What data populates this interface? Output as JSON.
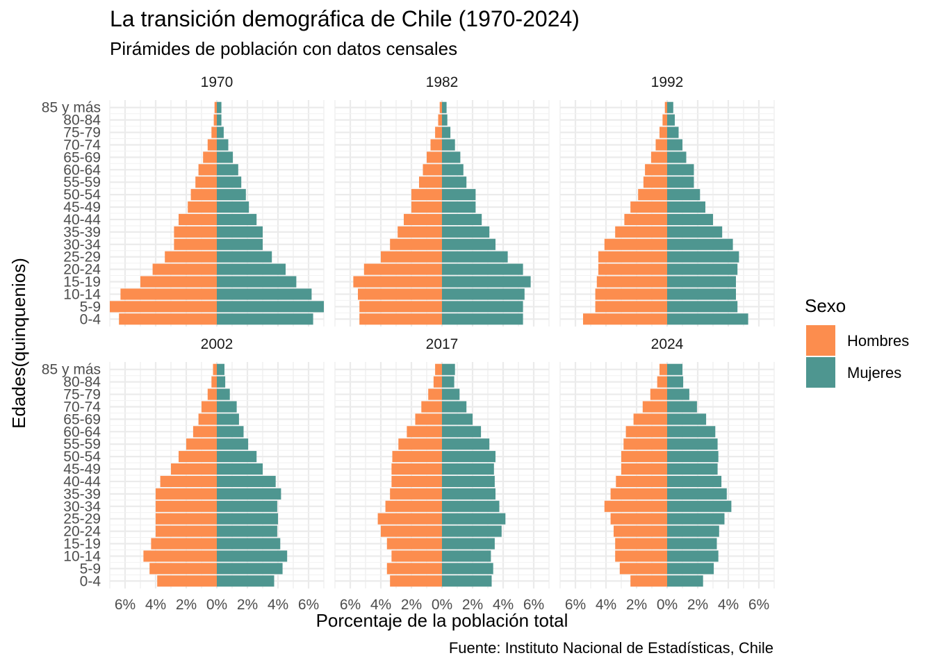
{
  "chart_data": {
    "type": "bar",
    "orientation": "horizontal",
    "layout": "faceted population pyramids",
    "title": "La transición demográfica de Chile (1970-2024)",
    "subtitle": "Pirámides de población con datos censales",
    "xlabel": "Porcentaje de la población total",
    "ylabel": "Edades(quinquenios)",
    "caption": "Fuente: Instituto Nacional de Estadísticas, Chile",
    "xlim": [
      -7,
      7
    ],
    "x_ticks": [
      -6,
      -4,
      -2,
      0,
      2,
      4,
      6
    ],
    "x_tick_labels": [
      "6%",
      "4%",
      "2%",
      "0%",
      "2%",
      "4%",
      "6%"
    ],
    "categories": [
      "0-4",
      "5-9",
      "10-14",
      "15-19",
      "20-24",
      "25-29",
      "30-34",
      "35-39",
      "40-44",
      "45-49",
      "50-54",
      "55-59",
      "60-64",
      "65-69",
      "70-74",
      "75-79",
      "80-84",
      "85 y más"
    ],
    "grid": true,
    "legend": {
      "title": "Sexo",
      "position": "right",
      "entries": [
        {
          "name": "Hombres",
          "color": "#fc8d4e"
        },
        {
          "name": "Mujeres",
          "color": "#4e9690"
        }
      ]
    },
    "colors": {
      "Hombres": "#fc8d4e",
      "Mujeres": "#4e9690"
    },
    "panels": [
      {
        "year": "1970",
        "Hombres": [
          6.4,
          7.0,
          6.3,
          5.0,
          4.2,
          3.4,
          2.8,
          2.8,
          2.5,
          1.9,
          1.7,
          1.4,
          1.2,
          0.9,
          0.6,
          0.35,
          0.2,
          0.15
        ],
        "Mujeres": [
          6.3,
          7.0,
          6.2,
          5.2,
          4.5,
          3.6,
          3.0,
          3.0,
          2.6,
          2.1,
          1.9,
          1.6,
          1.4,
          1.05,
          0.75,
          0.45,
          0.3,
          0.3
        ]
      },
      {
        "year": "1982",
        "Hombres": [
          5.4,
          5.4,
          5.5,
          5.8,
          5.1,
          4.0,
          3.4,
          2.9,
          2.5,
          2.0,
          2.0,
          1.5,
          1.25,
          1.0,
          0.75,
          0.45,
          0.25,
          0.15
        ],
        "Mujeres": [
          5.3,
          5.3,
          5.4,
          5.8,
          5.3,
          4.3,
          3.5,
          3.1,
          2.6,
          2.2,
          2.2,
          1.6,
          1.4,
          1.2,
          0.85,
          0.55,
          0.35,
          0.3
        ]
      },
      {
        "year": "1992",
        "Hombres": [
          5.5,
          4.7,
          4.7,
          4.6,
          4.5,
          4.5,
          4.1,
          3.4,
          2.8,
          2.4,
          1.9,
          1.55,
          1.45,
          1.05,
          0.75,
          0.5,
          0.3,
          0.15
        ],
        "Mujeres": [
          5.3,
          4.6,
          4.5,
          4.5,
          4.6,
          4.7,
          4.3,
          3.6,
          3.0,
          2.5,
          2.15,
          1.75,
          1.75,
          1.25,
          1.0,
          0.75,
          0.5,
          0.4
        ]
      },
      {
        "year": "2002",
        "Hombres": [
          3.9,
          4.4,
          4.8,
          4.3,
          4.0,
          4.0,
          4.0,
          4.0,
          3.7,
          3.0,
          2.5,
          2.0,
          1.55,
          1.2,
          1.0,
          0.6,
          0.35,
          0.25
        ],
        "Mujeres": [
          3.75,
          4.3,
          4.6,
          4.15,
          3.95,
          4.0,
          3.95,
          4.2,
          3.85,
          3.0,
          2.6,
          2.05,
          1.75,
          1.45,
          1.3,
          0.85,
          0.55,
          0.5
        ]
      },
      {
        "year": "2017",
        "Hombres": [
          3.4,
          3.6,
          3.3,
          3.6,
          4.0,
          4.2,
          3.7,
          3.4,
          3.3,
          3.3,
          3.25,
          2.85,
          2.3,
          1.75,
          1.35,
          0.9,
          0.55,
          0.45
        ],
        "Mujeres": [
          3.25,
          3.35,
          3.2,
          3.45,
          3.9,
          4.15,
          3.75,
          3.5,
          3.45,
          3.4,
          3.5,
          3.1,
          2.55,
          2.0,
          1.6,
          1.15,
          0.8,
          0.85
        ]
      },
      {
        "year": "2024",
        "Hombres": [
          2.4,
          3.1,
          3.4,
          3.4,
          3.5,
          3.7,
          4.1,
          3.7,
          3.35,
          3.0,
          3.0,
          2.85,
          2.7,
          2.2,
          1.6,
          1.1,
          0.65,
          0.5
        ],
        "Mujeres": [
          2.35,
          3.05,
          3.35,
          3.25,
          3.4,
          3.75,
          4.2,
          3.9,
          3.55,
          3.3,
          3.35,
          3.3,
          3.15,
          2.55,
          1.95,
          1.45,
          1.05,
          1.0
        ]
      }
    ]
  }
}
